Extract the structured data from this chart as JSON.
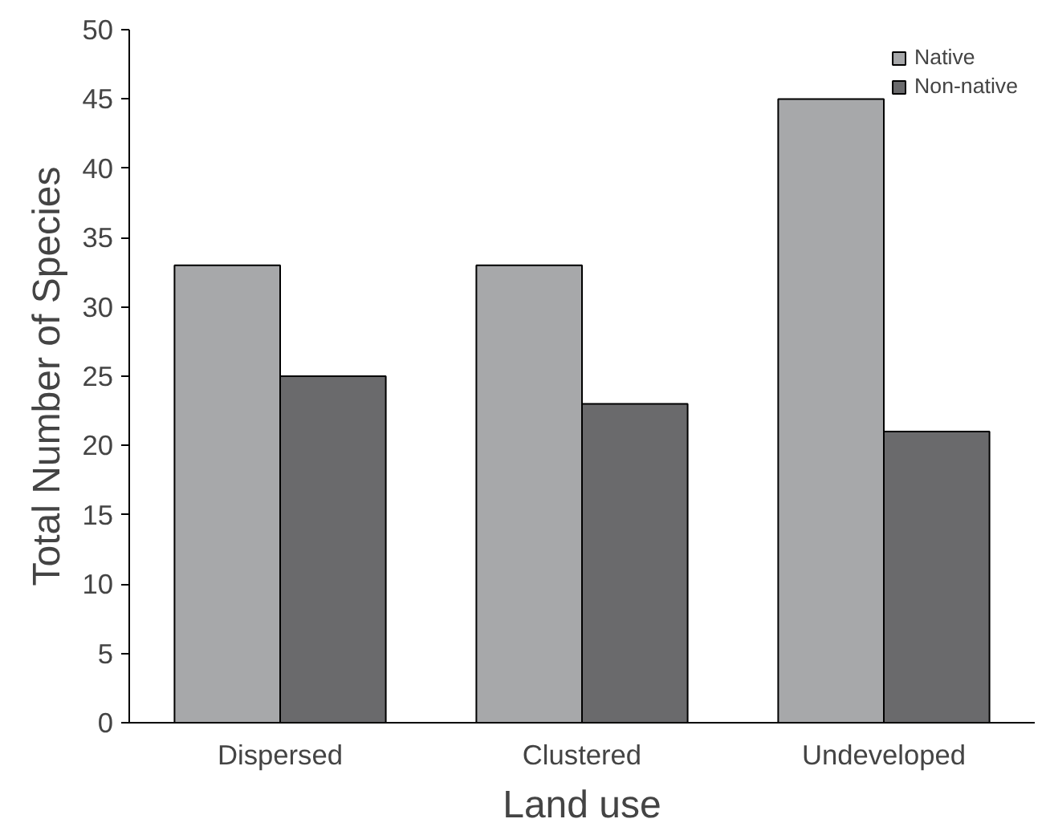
{
  "chart_data": {
    "type": "bar",
    "xlabel": "Land use",
    "ylabel": "Total Number of Species",
    "categories": [
      "Dispersed",
      "Clustered",
      "Undeveloped"
    ],
    "series": [
      {
        "name": "Native",
        "color": "#a7a8aa",
        "values": [
          33,
          33,
          45
        ]
      },
      {
        "name": "Non-native",
        "color": "#6a6a6c",
        "values": [
          25,
          23,
          21
        ]
      }
    ],
    "ylim": [
      0,
      50
    ],
    "yticks": [
      0,
      5,
      10,
      15,
      20,
      25,
      30,
      35,
      40,
      45,
      50
    ],
    "grid": false,
    "legend": "top right"
  }
}
